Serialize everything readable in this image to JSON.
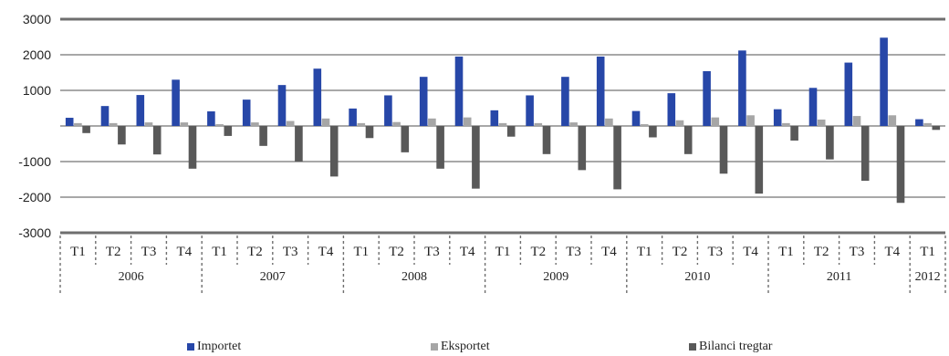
{
  "chart_data": {
    "type": "bar",
    "title": "",
    "xlabel": "",
    "ylabel": "",
    "ylim": [
      -3000,
      3000
    ],
    "yticks": [
      3000,
      2000,
      1000,
      0,
      -1000,
      -2000,
      -3000
    ],
    "ytick_labels": [
      "3000",
      "2000",
      "1000",
      "",
      "-1000",
      "-2000",
      "-3000"
    ],
    "years": [
      {
        "label": "2006",
        "quarters": [
          "T1",
          "T2",
          "T3",
          "T4"
        ]
      },
      {
        "label": "2007",
        "quarters": [
          "T1",
          "T2",
          "T3",
          "T4"
        ]
      },
      {
        "label": "2008",
        "quarters": [
          "T1",
          "T2",
          "T3",
          "T4"
        ]
      },
      {
        "label": "2009",
        "quarters": [
          "T1",
          "T2",
          "T3",
          "T4"
        ]
      },
      {
        "label": "2010",
        "quarters": [
          "T1",
          "T2",
          "T3",
          "T4"
        ]
      },
      {
        "label": "2011",
        "quarters": [
          "T1",
          "T2",
          "T3",
          "T4"
        ]
      },
      {
        "label": "2012",
        "quarters": [
          "T1"
        ]
      }
    ],
    "series": [
      {
        "name": "Importet",
        "color": "#2747a8",
        "values": [
          230,
          560,
          870,
          1300,
          410,
          740,
          1150,
          1610,
          490,
          860,
          1380,
          1950,
          440,
          860,
          1380,
          1950,
          420,
          920,
          1540,
          2120,
          470,
          1070,
          1780,
          2480,
          190
        ]
      },
      {
        "name": "Eksportet",
        "color": "#a6a6a6",
        "values": [
          80,
          80,
          100,
          100,
          50,
          100,
          140,
          210,
          80,
          110,
          210,
          240,
          80,
          80,
          100,
          210,
          50,
          160,
          240,
          300,
          80,
          180,
          280,
          300,
          80
        ]
      },
      {
        "name": "Bilanci tregtar",
        "color": "#595959",
        "values": [
          -200,
          -520,
          -800,
          -1200,
          -280,
          -560,
          -1000,
          -1420,
          -340,
          -740,
          -1200,
          -1760,
          -300,
          -790,
          -1240,
          -1780,
          -320,
          -790,
          -1340,
          -1900,
          -410,
          -940,
          -1540,
          -2160,
          -110
        ]
      }
    ],
    "legend_position": "bottom",
    "grid": true
  }
}
